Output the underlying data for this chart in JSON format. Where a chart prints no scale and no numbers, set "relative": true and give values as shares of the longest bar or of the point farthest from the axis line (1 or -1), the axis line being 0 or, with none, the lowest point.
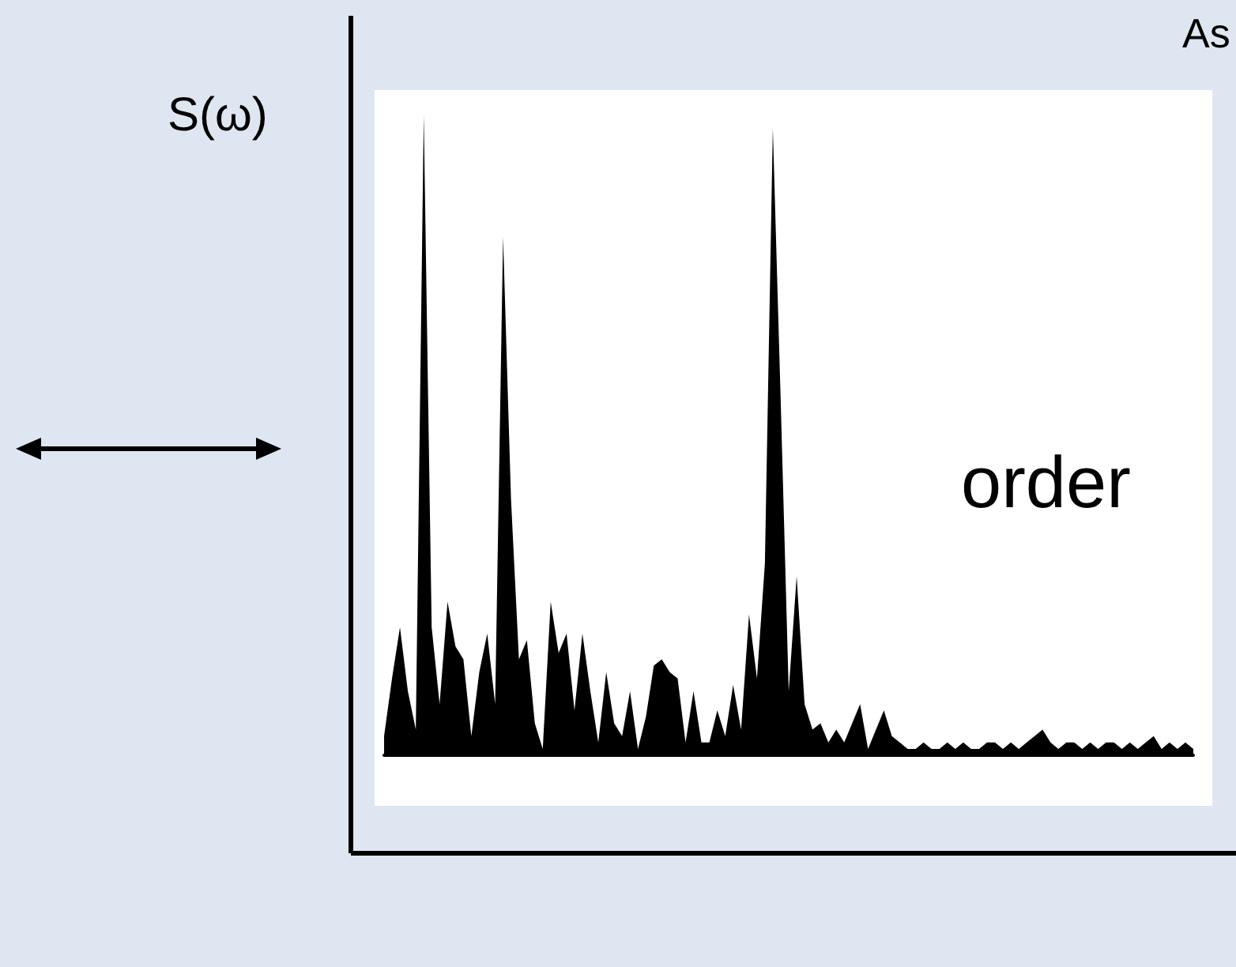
{
  "chart_data": {
    "type": "area",
    "ylabel": "S(ω)",
    "annotations": [
      "order",
      "As"
    ],
    "relative": true,
    "categories": [
      null,
      null,
      null,
      null,
      null,
      null,
      null,
      null,
      null,
      null,
      null,
      null,
      null,
      null,
      null,
      null,
      null,
      null,
      null,
      null,
      null,
      null,
      null,
      null,
      null,
      null,
      null,
      null,
      null,
      null,
      null,
      null,
      null,
      null,
      null,
      null,
      null,
      null,
      null,
      null,
      null,
      null,
      null,
      null,
      null,
      null,
      null,
      null,
      null,
      null,
      null,
      null,
      null,
      null,
      null,
      null,
      null,
      null,
      null,
      null,
      null,
      null,
      null,
      null,
      null,
      null,
      null,
      null,
      null,
      null,
      null,
      null,
      null,
      null,
      null,
      null,
      null,
      null,
      null,
      null,
      null,
      null,
      null,
      null,
      null,
      null,
      null,
      null,
      null,
      null,
      null,
      null,
      null,
      null,
      null,
      null,
      null,
      null,
      null,
      null,
      null,
      null,
      null
    ],
    "series": [
      {
        "color": "#000000",
        "values": [
          0.03,
          0.12,
          0.2,
          0.1,
          0.04,
          1.0,
          0.2,
          0.08,
          0.24,
          0.17,
          0.15,
          0.03,
          0.13,
          0.19,
          0.08,
          0.81,
          0.4,
          0.15,
          0.18,
          0.05,
          0.01,
          0.24,
          0.16,
          0.19,
          0.07,
          0.19,
          0.1,
          0.02,
          0.13,
          0.05,
          0.03,
          0.1,
          0.01,
          0.06,
          0.14,
          0.15,
          0.13,
          0.12,
          0.02,
          0.1,
          0.02,
          0.02,
          0.07,
          0.03,
          0.11,
          0.04,
          0.22,
          0.12,
          0.3,
          0.98,
          0.55,
          0.1,
          0.28,
          0.08,
          0.04,
          0.05,
          0.02,
          0.04,
          0.02,
          0.05,
          0.08,
          0.01,
          0.04,
          0.07,
          0.03,
          0.02,
          0.01,
          0.01,
          0.02,
          0.01,
          0.01,
          0.02,
          0.01,
          0.02,
          0.01,
          0.01,
          0.02,
          0.02,
          0.01,
          0.02,
          0.01,
          0.02,
          0.03,
          0.04,
          0.02,
          0.01,
          0.02,
          0.02,
          0.01,
          0.02,
          0.01,
          0.02,
          0.02,
          0.01,
          0.02,
          0.01,
          0.02,
          0.03,
          0.01,
          0.02,
          0.01,
          0.02,
          0.01
        ]
      }
    ]
  }
}
